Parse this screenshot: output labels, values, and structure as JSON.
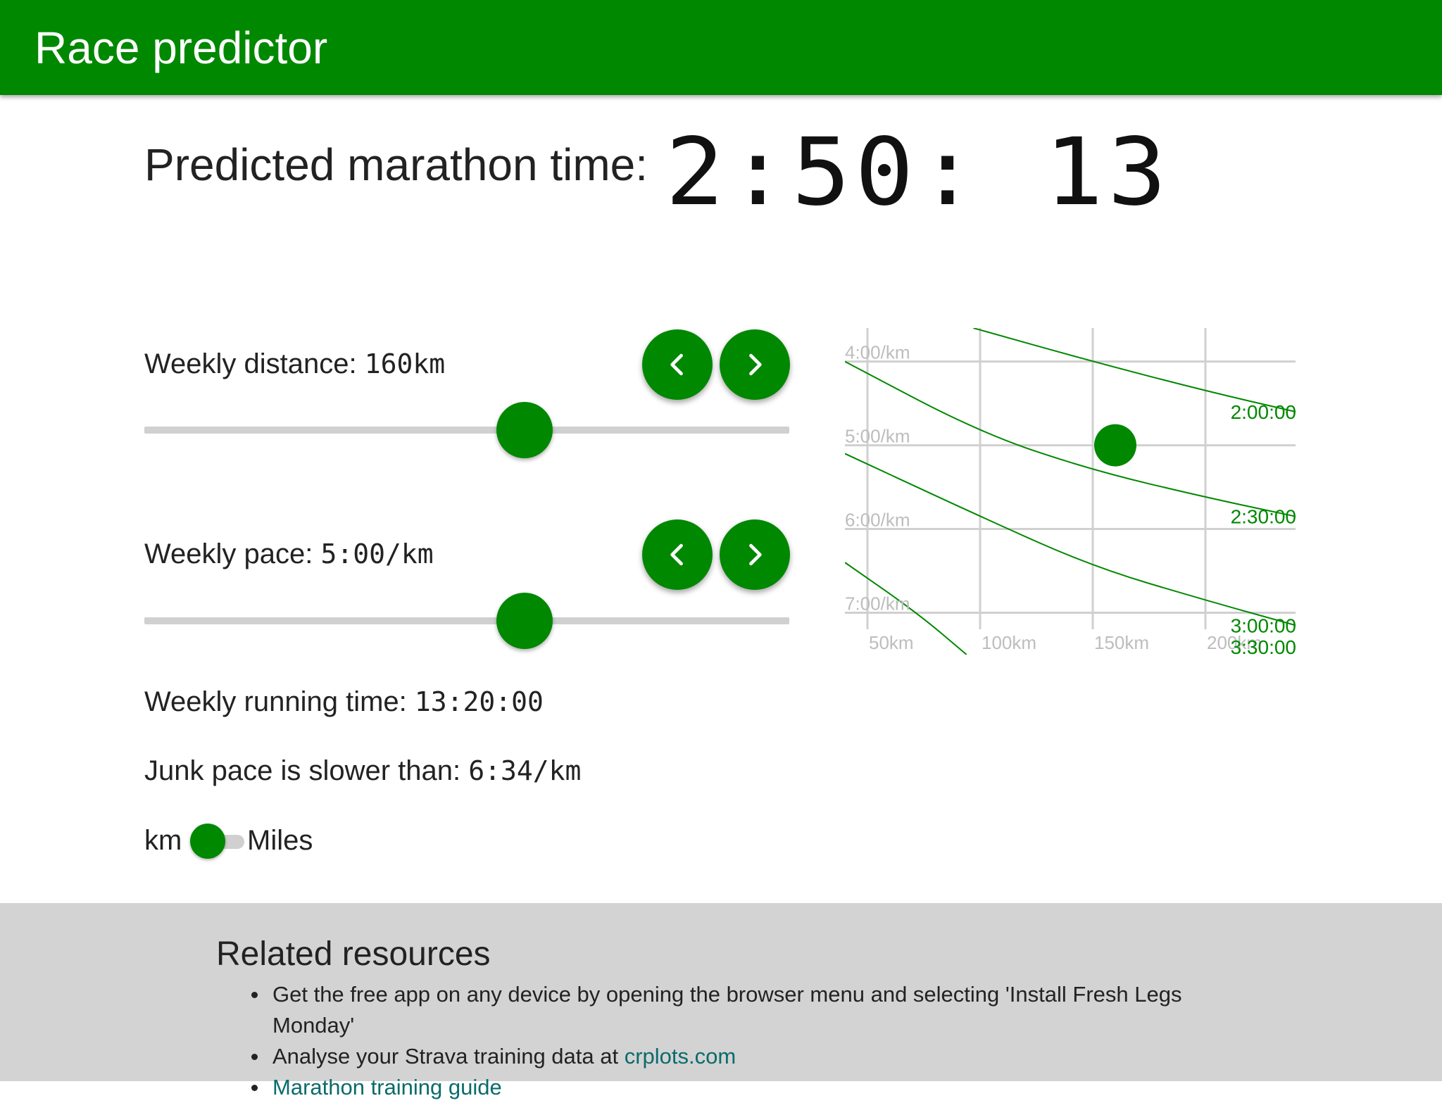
{
  "app": {
    "title": "Race predictor"
  },
  "prediction": {
    "label": "Predicted marathon time:",
    "value": "2:50: 13"
  },
  "distance": {
    "label": "Weekly distance: ",
    "value": "160km",
    "slider_fraction": 0.59
  },
  "pace": {
    "label": "Weekly pace: ",
    "value": "5:00/km",
    "slider_fraction": 0.59
  },
  "running_time": {
    "label": "Weekly running time: ",
    "value": "13:20:00"
  },
  "junk_pace": {
    "label": "Junk pace is slower than: ",
    "value": "6:34/km"
  },
  "units": {
    "left_label": "km",
    "right_label": "Miles",
    "selected": "km"
  },
  "buttons": {
    "prev_icon": "chevron-left-icon",
    "next_icon": "chevron-right-icon"
  },
  "colors": {
    "brand": "#008800",
    "grid": "#d0d0d0",
    "axis_text": "#bdbdbd",
    "link": "#0b6b6b",
    "footer_bg": "#d3d3d3"
  },
  "chart_data": {
    "type": "line",
    "x_tick_labels": [
      "50km",
      "100km",
      "150km",
      "200km"
    ],
    "x_ticks": [
      50,
      100,
      150,
      200
    ],
    "xlim": [
      40,
      240
    ],
    "y_tick_labels": [
      "4:00/km",
      "5:00/km",
      "6:00/km",
      "7:00/km"
    ],
    "y_ticks": [
      4,
      5,
      6,
      7
    ],
    "ylim": [
      3.6,
      7.5
    ],
    "grid": true,
    "series": [
      {
        "name": "2:00:00",
        "points": [
          [
            97,
            3.6
          ],
          [
            150,
            4.0
          ],
          [
            200,
            4.35
          ],
          [
            240,
            4.6
          ]
        ]
      },
      {
        "name": "2:30:00",
        "points": [
          [
            40,
            4.0
          ],
          [
            100,
            4.85
          ],
          [
            150,
            5.3
          ],
          [
            200,
            5.62
          ],
          [
            240,
            5.85
          ]
        ]
      },
      {
        "name": "3:00:00",
        "points": [
          [
            40,
            5.1
          ],
          [
            100,
            5.85
          ],
          [
            150,
            6.45
          ],
          [
            200,
            6.85
          ],
          [
            240,
            7.15
          ]
        ]
      },
      {
        "name": "3:30:00",
        "points": [
          [
            40,
            6.4
          ],
          [
            72,
            7.0
          ],
          [
            94,
            7.5
          ]
        ]
      }
    ],
    "point": {
      "x": 160,
      "y": 5.0
    }
  },
  "footer": {
    "title": "Related resources",
    "items": [
      {
        "text": "Get the free app on any device by opening the browser menu and selecting 'Install Fresh Legs Monday'"
      },
      {
        "prefix": "Analyse your Strava training data at ",
        "link": "crplots.com"
      },
      {
        "link": "Marathon training guide"
      }
    ]
  }
}
